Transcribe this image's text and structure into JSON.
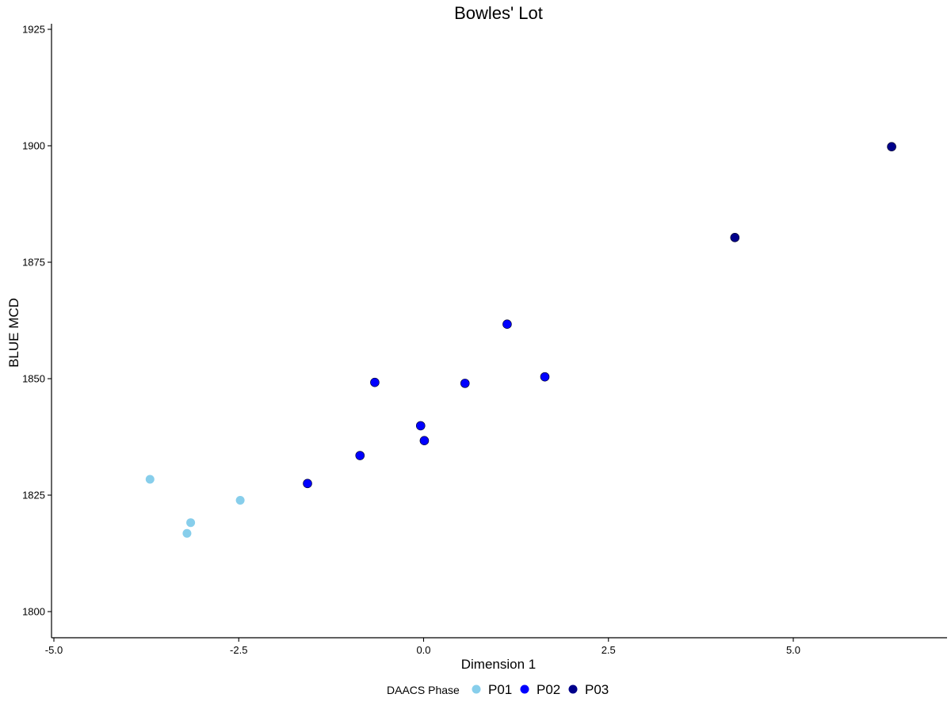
{
  "chart_data": {
    "type": "scatter",
    "title": "Bowles' Lot",
    "xlabel": "Dimension 1",
    "ylabel": "BLUE MCD",
    "xlim": [
      -5.0,
      7.0
    ],
    "ylim": [
      1794,
      1926
    ],
    "xticks": [
      "-5.0",
      "-2.5",
      "0.0",
      "2.5",
      "5.0"
    ],
    "xtick_values": [
      -5.0,
      -2.5,
      0.0,
      2.5,
      5.0
    ],
    "yticks": [
      "1800",
      "1825",
      "1850",
      "1875",
      "1900",
      "1925"
    ],
    "ytick_values": [
      1800,
      1825,
      1850,
      1875,
      1900,
      1925
    ],
    "grid": false,
    "legend": {
      "title": "DAACS Phase",
      "position": "bottom"
    },
    "series": [
      {
        "name": "P01",
        "color": "#87ceeb",
        "points": [
          {
            "x": -3.7,
            "y": 1828.4
          },
          {
            "x": -3.2,
            "y": 1816.8
          },
          {
            "x": -3.15,
            "y": 1819.1
          },
          {
            "x": -2.48,
            "y": 1823.9
          }
        ]
      },
      {
        "name": "P02",
        "color": "#0000ff",
        "points": [
          {
            "x": -1.57,
            "y": 1827.5
          },
          {
            "x": -0.86,
            "y": 1833.5
          },
          {
            "x": -0.66,
            "y": 1849.2
          },
          {
            "x": -0.04,
            "y": 1839.9
          },
          {
            "x": 0.01,
            "y": 1836.7
          },
          {
            "x": 0.56,
            "y": 1849.0
          },
          {
            "x": 1.13,
            "y": 1861.7
          },
          {
            "x": 1.64,
            "y": 1850.4
          }
        ]
      },
      {
        "name": "P03",
        "color": "#00008b",
        "points": [
          {
            "x": 4.21,
            "y": 1880.3
          },
          {
            "x": 6.33,
            "y": 1899.8
          }
        ]
      }
    ]
  }
}
